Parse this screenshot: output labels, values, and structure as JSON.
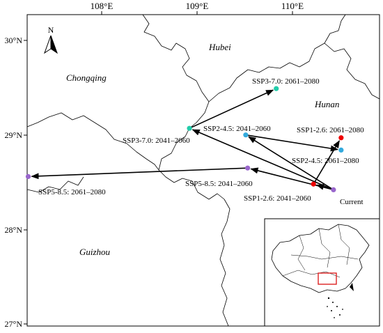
{
  "axes": {
    "lon_ticks": [
      "108°E",
      "109°E",
      "110°E"
    ],
    "lat_ticks": [
      "30°N",
      "29°N",
      "28°N",
      "27°N"
    ]
  },
  "north_arrow": {
    "label": "N",
    "icon": "north-arrow-icon"
  },
  "regions": {
    "hubei": "Hubei",
    "chongqing": "Chongqing",
    "hunan": "Hunan",
    "guizhou": "Guizhou"
  },
  "points": {
    "current": {
      "label": "Current",
      "lon": 110.43,
      "lat": 28.42,
      "color": "#9966cc"
    },
    "ssp126_2041": {
      "label": "SSP1-2.6: 2041–2060",
      "lon": 110.22,
      "lat": 28.48,
      "color": "#ee0000"
    },
    "ssp126_2061": {
      "label": "SSP1-2.6: 2061–2080",
      "lon": 110.51,
      "lat": 28.97,
      "color": "#ee0000"
    },
    "ssp245_2041": {
      "label": "SSP2-4.5: 2041–2060",
      "lon": 109.51,
      "lat": 29.0,
      "color": "#33aadd"
    },
    "ssp245_2061": {
      "label": "SSP2-4.5: 2061–2080",
      "lon": 110.51,
      "lat": 28.84,
      "color": "#33aadd"
    },
    "ssp370_2041": {
      "label": "SSP3-7.0: 2041–2060",
      "lon": 108.92,
      "lat": 29.07,
      "color": "#22ccaa"
    },
    "ssp370_2061": {
      "label": "SSP3-7.0: 2061–2080",
      "lon": 109.83,
      "lat": 29.49,
      "color": "#22ccaa"
    },
    "ssp585_2041": {
      "label": "SSP5-8.5: 2041–2060",
      "lon": 109.53,
      "lat": 28.65,
      "color": "#9966cc"
    },
    "ssp585_2061": {
      "label": "SSP5-8.5: 2061–2080",
      "lon": 107.23,
      "lat": 28.56,
      "color": "#9966cc"
    }
  },
  "paths": [
    [
      "current",
      "ssp126_2041",
      "ssp126_2061"
    ],
    [
      "current",
      "ssp245_2041",
      "ssp245_2061"
    ],
    [
      "current",
      "ssp370_2041",
      "ssp370_2061"
    ],
    [
      "current",
      "ssp585_2041",
      "ssp585_2061"
    ]
  ],
  "inset": {
    "frame_color": "#000000",
    "highlight_color": "#dd2222"
  }
}
